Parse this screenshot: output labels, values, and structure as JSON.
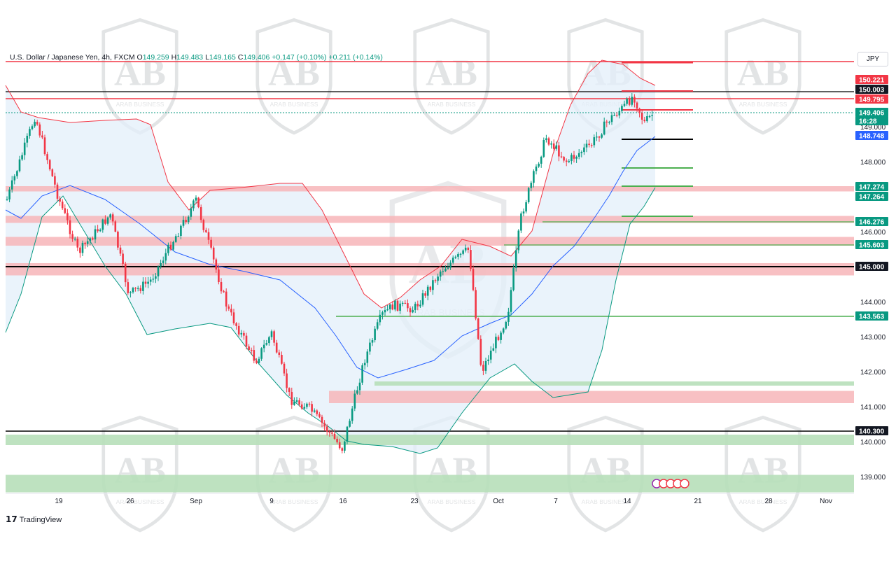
{
  "header": {
    "symbol": "U.S. Dollar / Japanese Yen, 4h, FXCM",
    "open_label": "O",
    "open": "149.259",
    "high_label": "H",
    "high": "149.483",
    "low_label": "L",
    "low": "149.165",
    "close_label": "C",
    "close": "149.406",
    "change": "+0.147 (+0.10%)",
    "change2": "+0.211 (+0.14%)"
  },
  "currency_label": "JPY",
  "brand": "TradingView",
  "watermark_text": "ARAB BUSINESS",
  "colors": {
    "up": "#089981",
    "down": "#f23645",
    "bb_band": "#f23645",
    "bb_lower": "#089981",
    "mid": "#2962ff",
    "fill": "#e3effa",
    "resistance_zone": "#f7b5b9",
    "support_zone": "#b7dfb9",
    "key_line": "#000000",
    "green_line": "#4caf50"
  },
  "chart_data": {
    "type": "candlestick",
    "title": "U.S. Dollar / Japanese Yen, 4h, FXCM",
    "y_axis": {
      "ticks": [
        "149.000",
        "148.000",
        "146.000",
        "144.000",
        "143.000",
        "142.000",
        "141.000",
        "140.000",
        "139.000"
      ],
      "range": [
        138.5,
        151.2
      ]
    },
    "x_axis": {
      "ticks": [
        "19",
        "26",
        "Sep",
        "9",
        "16",
        "23",
        "Oct",
        "7",
        "14",
        "21",
        "28",
        "Nov"
      ]
    },
    "price_tags": [
      {
        "text": "150.221",
        "bg": "#f23645",
        "fg": "#ffffff"
      },
      {
        "text": "150.003",
        "bg": "#131722",
        "fg": "#ffffff"
      },
      {
        "text": "149.795",
        "bg": "#f23645",
        "fg": "#ffffff"
      },
      {
        "text": "149.406",
        "bg": "#089981",
        "fg": "#ffffff"
      },
      {
        "text": "16:28",
        "bg": "#089981",
        "fg": "#ffffff"
      },
      {
        "text": "148.748",
        "bg": "#2962ff",
        "fg": "#ffffff"
      },
      {
        "text": "147.274",
        "bg": "#089981",
        "fg": "#ffffff"
      },
      {
        "text": "147.264",
        "bg": "#089981",
        "fg": "#ffffff"
      },
      {
        "text": "146.276",
        "bg": "#089981",
        "fg": "#ffffff"
      },
      {
        "text": "145.603",
        "bg": "#089981",
        "fg": "#ffffff"
      },
      {
        "text": "145.000",
        "bg": "#131722",
        "fg": "#ffffff"
      },
      {
        "text": "143.563",
        "bg": "#089981",
        "fg": "#ffffff"
      },
      {
        "text": "140.300",
        "bg": "#131722",
        "fg": "#ffffff"
      }
    ],
    "key_levels": [
      150.22,
      150.003,
      149.795,
      145.0,
      140.3
    ],
    "green_levels": [
      147.274,
      146.276,
      145.603,
      143.563
    ],
    "resistance_zones": [
      [
        147.15,
        147.3
      ],
      [
        146.25,
        146.45
      ],
      [
        145.6,
        145.85
      ],
      [
        144.75,
        145.1
      ],
      [
        141.1,
        141.45
      ]
    ],
    "support_zones": [
      [
        141.6,
        141.72
      ],
      [
        139.9,
        140.2
      ],
      [
        138.55,
        139.05
      ]
    ],
    "price_path": [
      {
        "x": "Aug 15",
        "v": 146.8
      },
      {
        "x": "Aug 16",
        "v": 149.3
      },
      {
        "x": "Aug 19",
        "v": 147.0
      },
      {
        "x": "Aug 21",
        "v": 145.4
      },
      {
        "x": "Aug 23",
        "v": 146.5
      },
      {
        "x": "Aug 26",
        "v": 144.2
      },
      {
        "x": "Aug 28",
        "v": 144.6
      },
      {
        "x": "Sep 2",
        "v": 146.9
      },
      {
        "x": "Sep 4",
        "v": 143.8
      },
      {
        "x": "Sep 6",
        "v": 142.3
      },
      {
        "x": "Sep 9",
        "v": 143.1
      },
      {
        "x": "Sep 11",
        "v": 141.2
      },
      {
        "x": "Sep 13",
        "v": 141.0
      },
      {
        "x": "Sep 16",
        "v": 139.8
      },
      {
        "x": "Sep 18",
        "v": 142.3
      },
      {
        "x": "Sep 19",
        "v": 143.6
      },
      {
        "x": "Sep 20",
        "v": 143.9
      },
      {
        "x": "Sep 23",
        "v": 143.8
      },
      {
        "x": "Sep 25",
        "v": 144.9
      },
      {
        "x": "Sep 27",
        "v": 145.5
      },
      {
        "x": "Sep 30",
        "v": 142.0
      },
      {
        "x": "Oct 2",
        "v": 143.6
      },
      {
        "x": "Oct 3",
        "v": 146.5
      },
      {
        "x": "Oct 4",
        "v": 148.7
      },
      {
        "x": "Oct 7",
        "v": 148.0
      },
      {
        "x": "Oct 9",
        "v": 148.5
      },
      {
        "x": "Oct 11",
        "v": 149.2
      },
      {
        "x": "Oct 14",
        "v": 149.6
      },
      {
        "x": "Oct 15",
        "v": 149.9
      },
      {
        "x": "Oct 16",
        "v": 149.1
      },
      {
        "x": "Oct 17",
        "v": 149.4
      }
    ]
  }
}
